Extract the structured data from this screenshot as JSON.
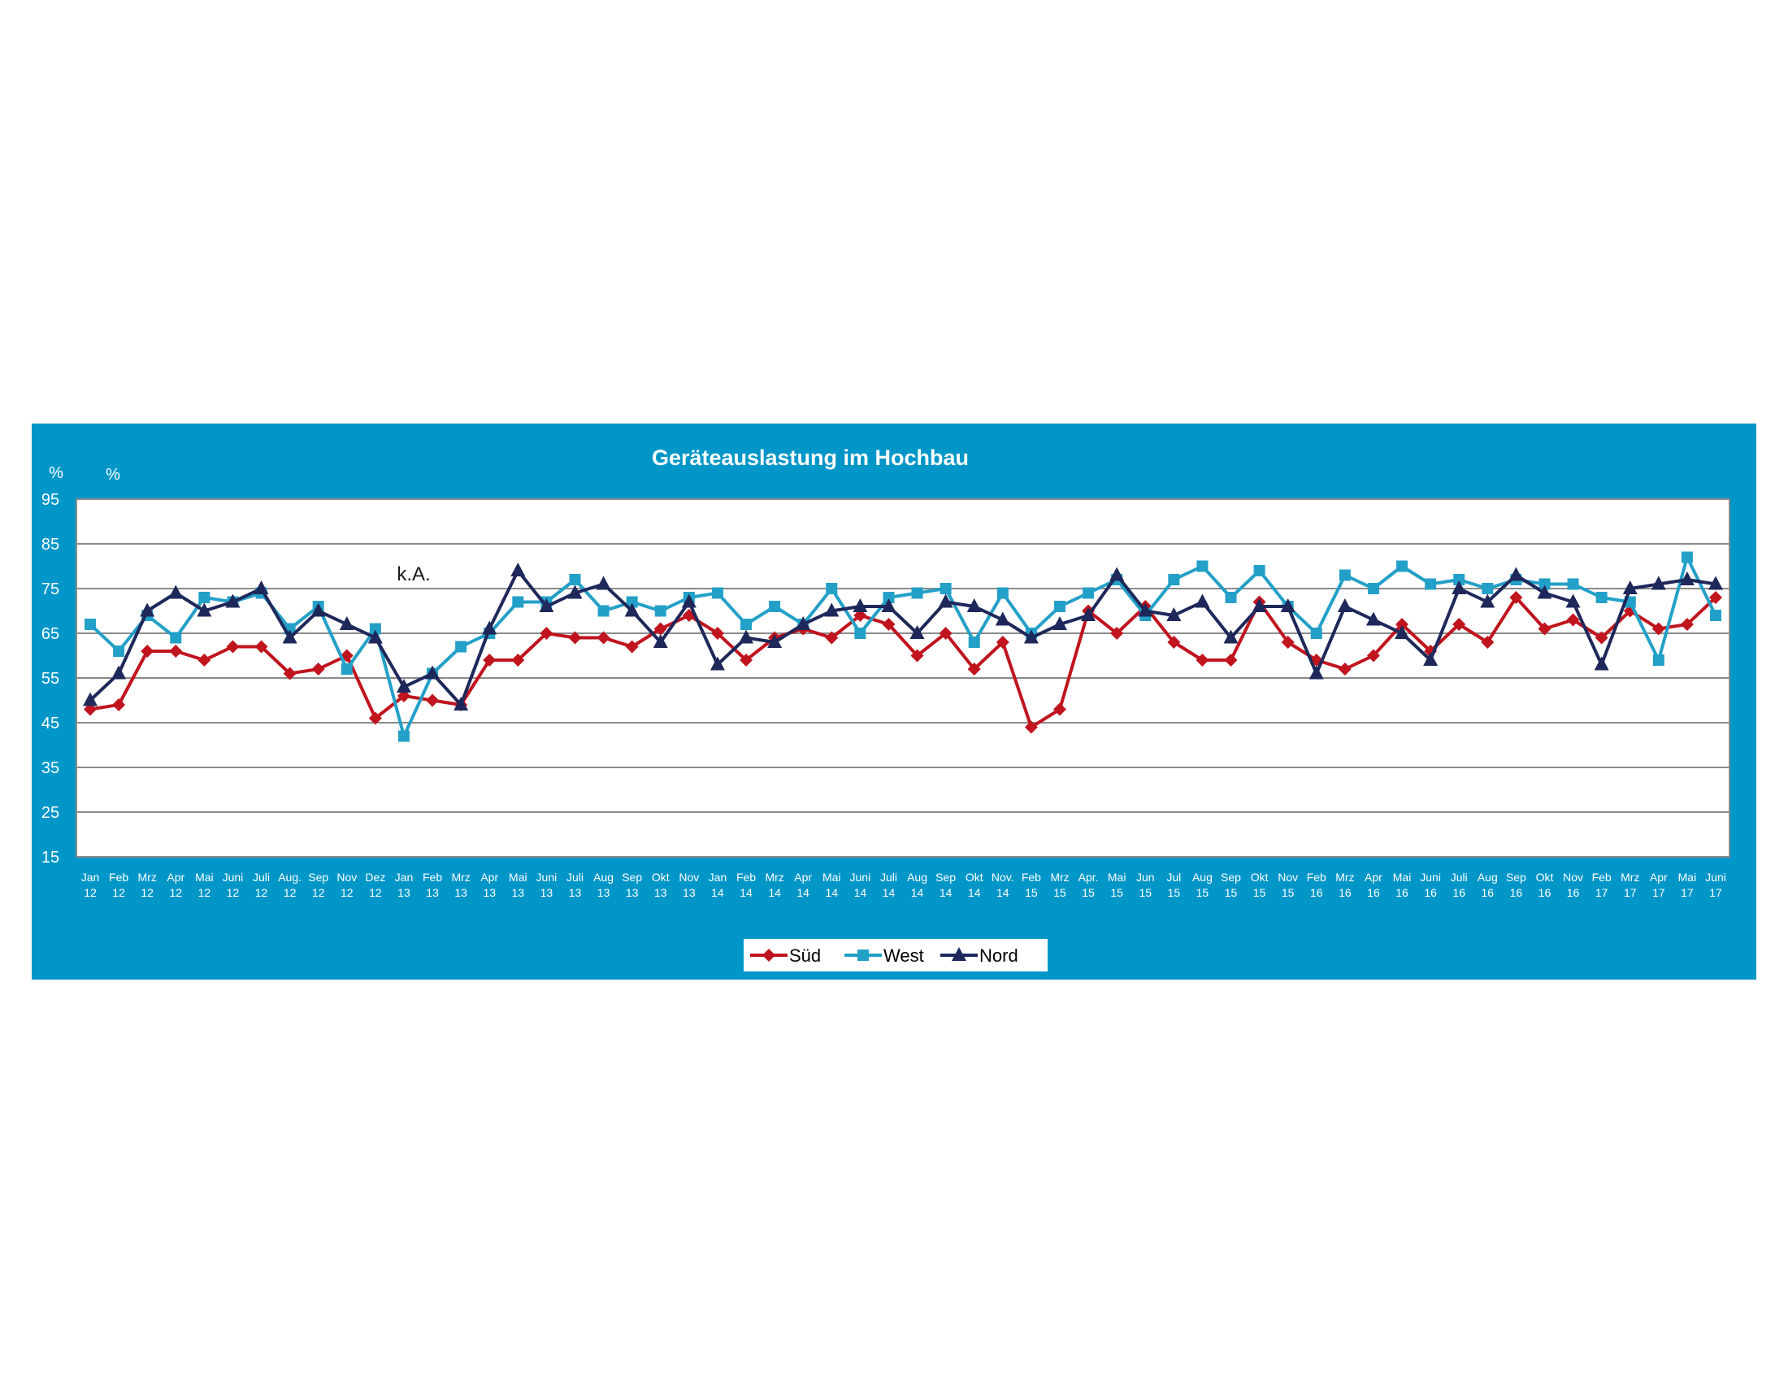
{
  "chart_data": {
    "type": "line",
    "title": "Geräteauslastung im Hochbau",
    "unit_labels": [
      "%",
      "%"
    ],
    "annotation": "k.A.",
    "ylim": [
      15,
      95
    ],
    "yticks": [
      15,
      25,
      35,
      45,
      55,
      65,
      75,
      85,
      95
    ],
    "grid": true,
    "legend_position": "bottom",
    "categories": [
      [
        "Jan",
        "12"
      ],
      [
        "Feb",
        "12"
      ],
      [
        "Mrz",
        "12"
      ],
      [
        "Apr",
        "12"
      ],
      [
        "Mai",
        "12"
      ],
      [
        "Juni",
        "12"
      ],
      [
        "Juli",
        "12"
      ],
      [
        "Aug.",
        "12"
      ],
      [
        "Sep",
        "12"
      ],
      [
        "Nov",
        "12"
      ],
      [
        "Dez",
        "12"
      ],
      [
        "Jan",
        "13"
      ],
      [
        "Feb",
        "13"
      ],
      [
        "Mrz",
        "13"
      ],
      [
        "Apr",
        "13"
      ],
      [
        "Mai",
        "13"
      ],
      [
        "Juni",
        "13"
      ],
      [
        "Juli",
        "13"
      ],
      [
        "Aug",
        "13"
      ],
      [
        "Sep",
        "13"
      ],
      [
        "Okt",
        "13"
      ],
      [
        "Nov",
        "13"
      ],
      [
        "Jan",
        "14"
      ],
      [
        "Feb",
        "14"
      ],
      [
        "Mrz",
        "14"
      ],
      [
        "Apr",
        "14"
      ],
      [
        "Mai",
        "14"
      ],
      [
        "Juni",
        "14"
      ],
      [
        "Juli",
        "14"
      ],
      [
        "Aug",
        "14"
      ],
      [
        "Sep",
        "14"
      ],
      [
        "Okt",
        "14"
      ],
      [
        "Nov.",
        "14"
      ],
      [
        "Feb",
        "15"
      ],
      [
        "Mrz",
        "15"
      ],
      [
        "Apr.",
        "15"
      ],
      [
        "Mai",
        "15"
      ],
      [
        "Jun",
        "15"
      ],
      [
        "Jul",
        "15"
      ],
      [
        "Aug",
        "15"
      ],
      [
        "Sep",
        "15"
      ],
      [
        "Okt",
        "15"
      ],
      [
        "Nov",
        "15"
      ],
      [
        "Feb",
        "16"
      ],
      [
        "Mrz",
        "16"
      ],
      [
        "Apr",
        "16"
      ],
      [
        "Mai",
        "16"
      ],
      [
        "Juni",
        "16"
      ],
      [
        "Juli",
        "16"
      ],
      [
        "Aug",
        "16"
      ],
      [
        "Sep",
        "16"
      ],
      [
        "Okt",
        "16"
      ],
      [
        "Nov",
        "16"
      ],
      [
        "Feb",
        "17"
      ],
      [
        "Mrz",
        "17"
      ],
      [
        "Apr",
        "17"
      ],
      [
        "Mai",
        "17"
      ],
      [
        "Juni",
        "17"
      ]
    ],
    "series": [
      {
        "name": "Süd",
        "color": "#C0141E",
        "marker": "diamond",
        "values": [
          48,
          49,
          61,
          61,
          59,
          62,
          62,
          56,
          57,
          60,
          46,
          51,
          50,
          49,
          59,
          59,
          65,
          64,
          64,
          62,
          66,
          69,
          65,
          59,
          64,
          66,
          64,
          69,
          67,
          60,
          65,
          57,
          63,
          44,
          48,
          70,
          65,
          71,
          63,
          59,
          59,
          72,
          63,
          59,
          57,
          60,
          67,
          61,
          67,
          63,
          73,
          66,
          68,
          64,
          70,
          66,
          67,
          73
        ]
      },
      {
        "name": "West",
        "color": "#23A0C8",
        "marker": "square",
        "values": [
          67,
          61,
          69,
          64,
          73,
          72,
          74,
          66,
          71,
          57,
          66,
          42,
          56,
          62,
          65,
          72,
          72,
          77,
          70,
          72,
          70,
          73,
          74,
          67,
          71,
          67,
          75,
          65,
          73,
          74,
          75,
          63,
          74,
          65,
          71,
          74,
          77,
          69,
          77,
          80,
          73,
          79,
          71,
          65,
          78,
          75,
          80,
          76,
          77,
          75,
          77,
          76,
          76,
          73,
          72,
          59,
          82,
          69
        ]
      },
      {
        "name": "Nord",
        "color": "#1E285A",
        "marker": "triangle",
        "values": [
          50,
          56,
          70,
          74,
          70,
          72,
          75,
          64,
          70,
          67,
          64,
          53,
          56,
          49,
          66,
          79,
          71,
          74,
          76,
          70,
          63,
          72,
          58,
          64,
          63,
          67,
          70,
          71,
          71,
          65,
          72,
          71,
          68,
          64,
          67,
          69,
          78,
          70,
          69,
          72,
          64,
          71,
          71,
          56,
          71,
          68,
          65,
          59,
          75,
          72,
          78,
          74,
          72,
          58,
          75,
          76,
          77,
          76
        ]
      }
    ]
  }
}
